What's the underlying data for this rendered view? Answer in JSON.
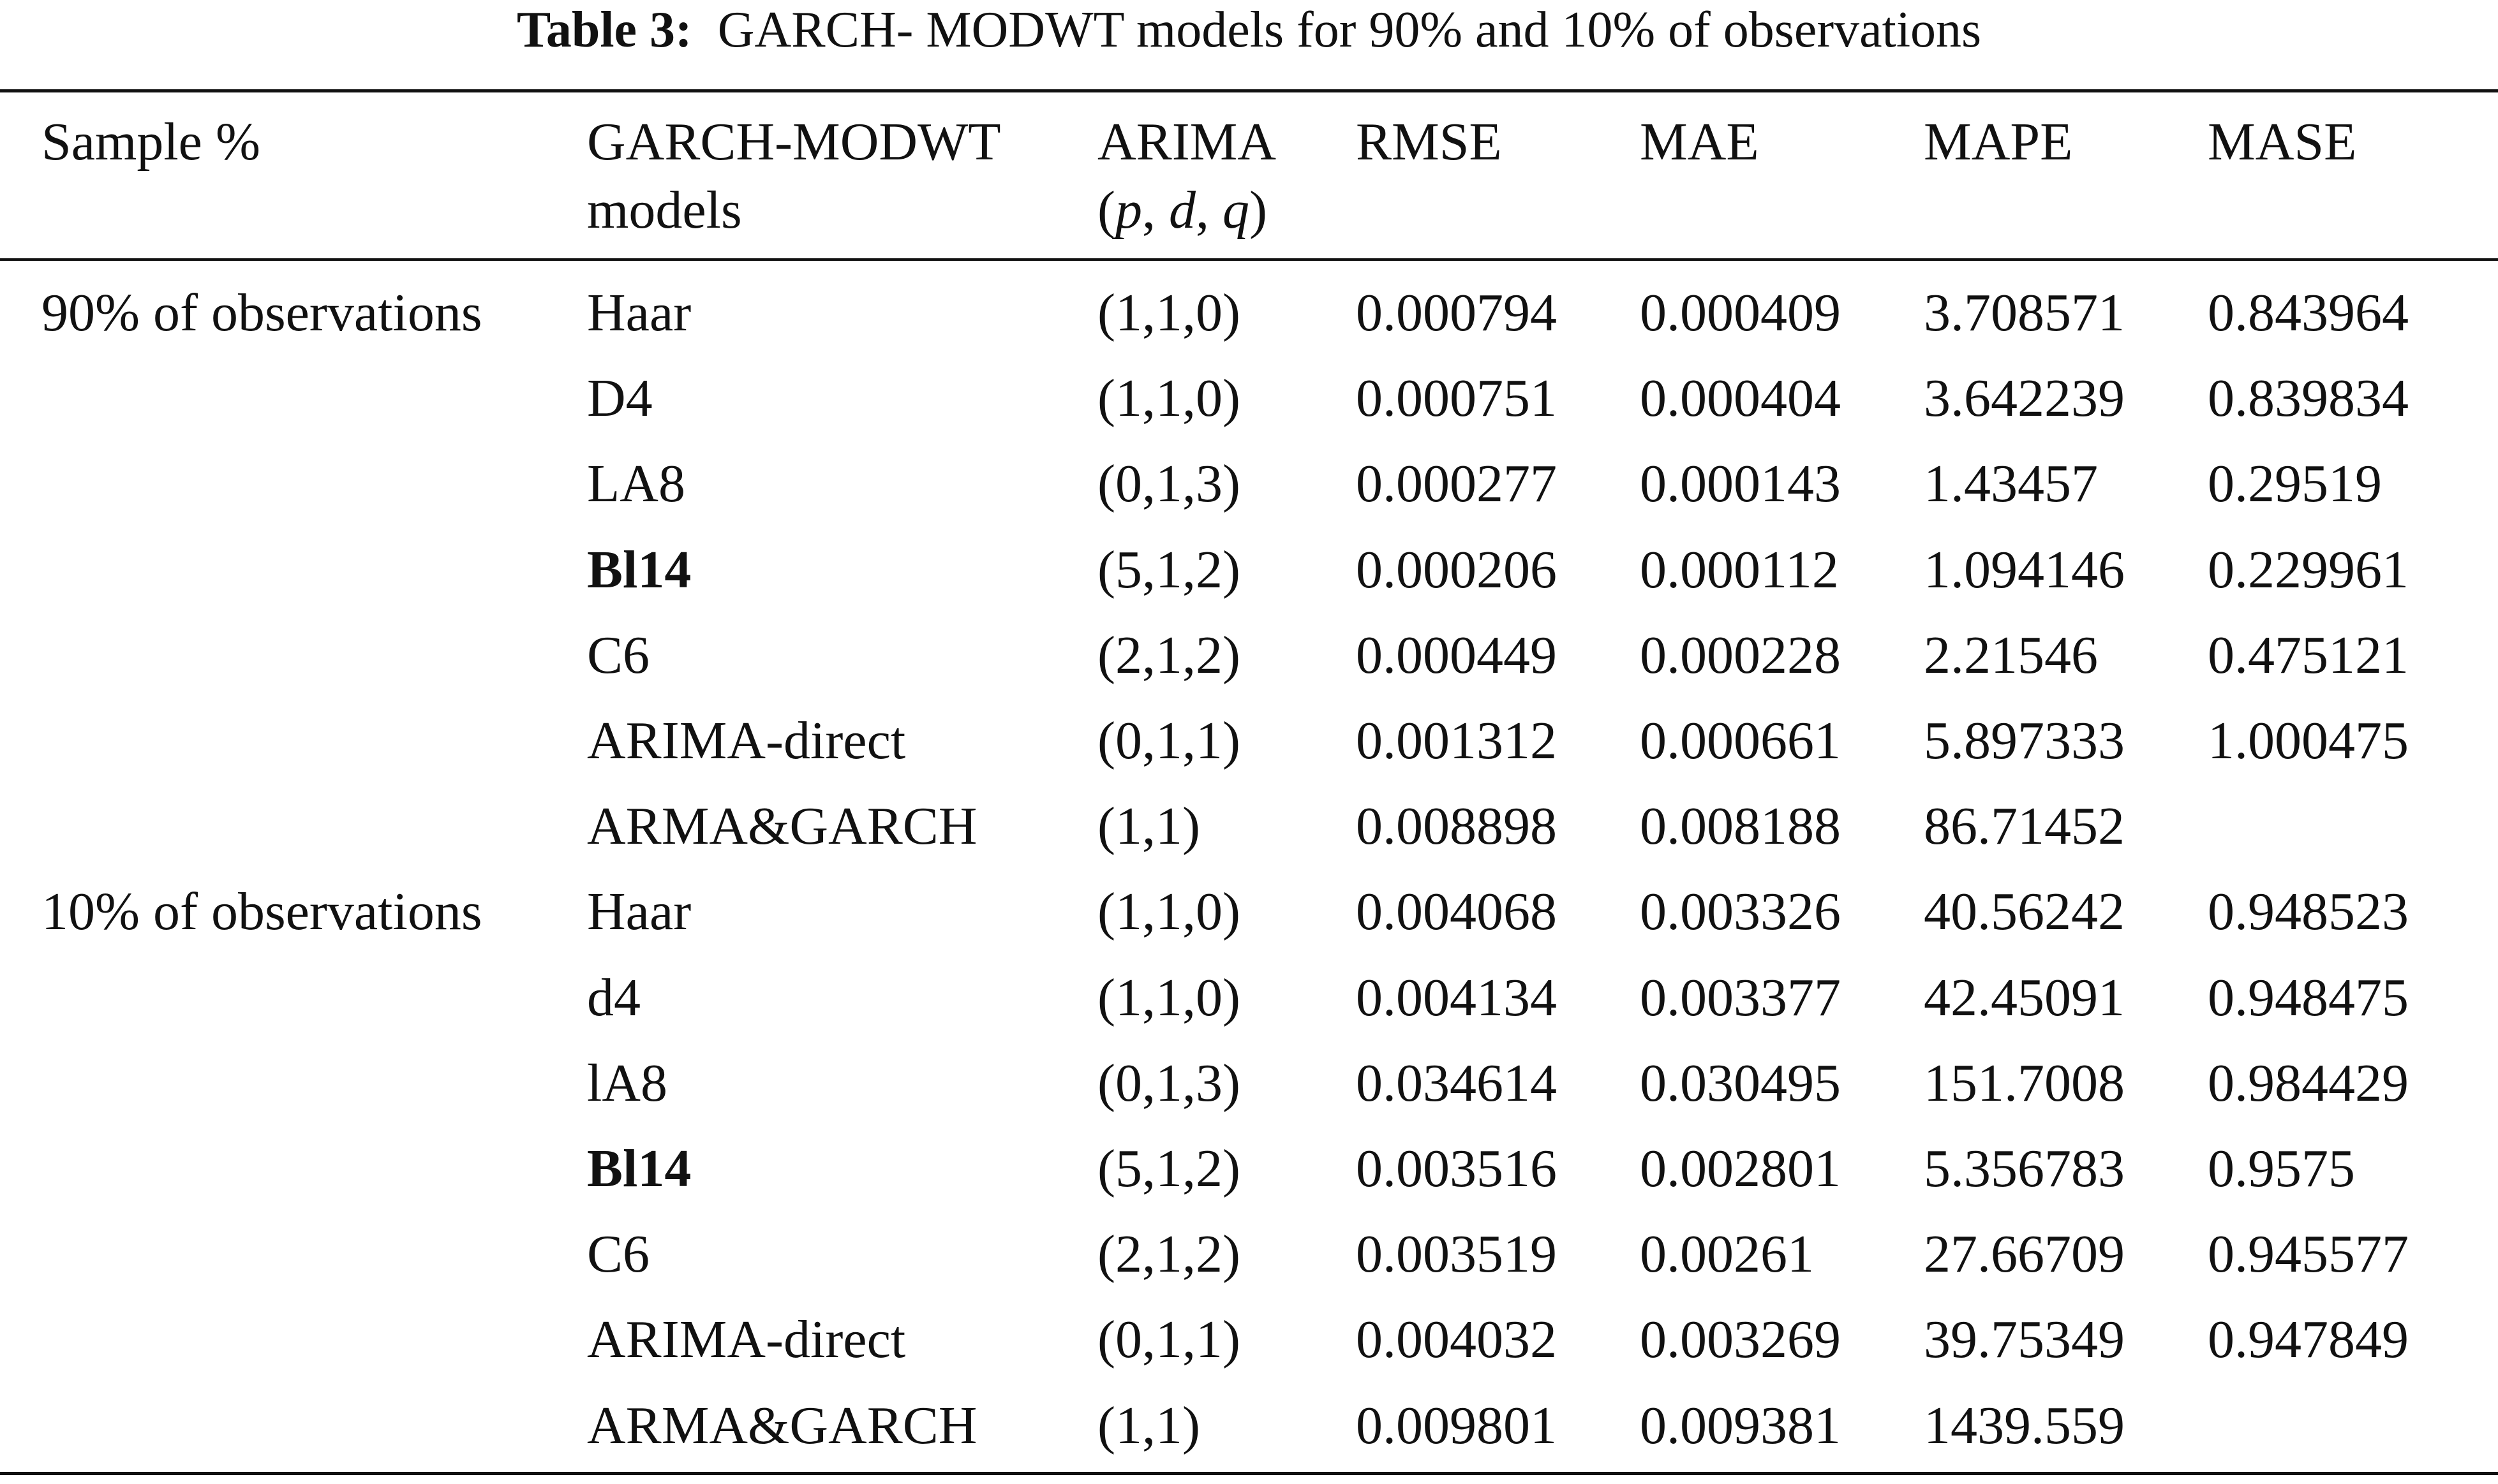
{
  "caption": {
    "label": "Table 3:",
    "text": "GARCH- MODWT models for 90% and 10% of observations"
  },
  "headers": {
    "sample": "Sample %",
    "models_line1": "GARCH-MODWT",
    "models_line2": "models",
    "arima_line1": "ARIMA",
    "arima_p": "p",
    "arima_d": "d",
    "arima_q": "q",
    "rmse": "RMSE",
    "mae": "MAE",
    "mape": "MAPE",
    "mase": "MASE"
  },
  "groups": [
    {
      "sample": "90% of observations",
      "rows": [
        {
          "model": "Haar",
          "bold": false,
          "arima": "(1,1,0)",
          "rmse": "0.000794",
          "mae": "0.000409",
          "mape": "3.708571",
          "mase": "0.843964"
        },
        {
          "model": "D4",
          "bold": false,
          "arima": "(1,1,0)",
          "rmse": "0.000751",
          "mae": "0.000404",
          "mape": "3.642239",
          "mase": "0.839834"
        },
        {
          "model": "LA8",
          "bold": false,
          "arima": "(0,1,3)",
          "rmse": "0.000277",
          "mae": "0.000143",
          "mape": "1.43457",
          "mase": "0.29519"
        },
        {
          "model": "Bl14",
          "bold": true,
          "arima": "(5,1,2)",
          "rmse": "0.000206",
          "mae": "0.000112",
          "mape": "1.094146",
          "mase": "0.229961"
        },
        {
          "model": "C6",
          "bold": false,
          "arima": "(2,1,2)",
          "rmse": "0.000449",
          "mae": "0.000228",
          "mape": "2.21546",
          "mase": "0.475121"
        },
        {
          "model": "ARIMA-direct",
          "bold": false,
          "arima": "(0,1,1)",
          "rmse": "0.001312",
          "mae": "0.000661",
          "mape": "5.897333",
          "mase": "1.000475"
        },
        {
          "model": "ARMA&GARCH",
          "bold": false,
          "arima": "(1,1)",
          "rmse": "0.008898",
          "mae": "0.008188",
          "mape": "86.71452",
          "mase": ""
        }
      ]
    },
    {
      "sample": "10% of observations",
      "rows": [
        {
          "model": "Haar",
          "bold": false,
          "arima": "(1,1,0)",
          "rmse": "0.004068",
          "mae": "0.003326",
          "mape": "40.56242",
          "mase": "0.948523"
        },
        {
          "model": "d4",
          "bold": false,
          "arima": "(1,1,0)",
          "rmse": "0.004134",
          "mae": "0.003377",
          "mape": "42.45091",
          "mase": "0.948475"
        },
        {
          "model": "lA8",
          "bold": false,
          "arima": "(0,1,3)",
          "rmse": "0.034614",
          "mae": "0.030495",
          "mape": "151.7008",
          "mase": "0.984429"
        },
        {
          "model": "Bl14",
          "bold": true,
          "arima": "(5,1,2)",
          "rmse": "0.003516",
          "mae": "0.002801",
          "mape": "5.356783",
          "mase": "0.9575"
        },
        {
          "model": "C6",
          "bold": false,
          "arima": "(2,1,2)",
          "rmse": "0.003519",
          "mae": "0.00261",
          "mape": "27.66709",
          "mase": "0.945577"
        },
        {
          "model": "ARIMA-direct",
          "bold": false,
          "arima": "(0,1,1)",
          "rmse": "0.004032",
          "mae": "0.003269",
          "mape": "39.75349",
          "mase": "0.947849"
        },
        {
          "model": "ARMA&GARCH",
          "bold": false,
          "arima": "(1,1)",
          "rmse": "0.009801",
          "mae": "0.009381",
          "mape": "1439.559",
          "mase": ""
        }
      ]
    }
  ]
}
